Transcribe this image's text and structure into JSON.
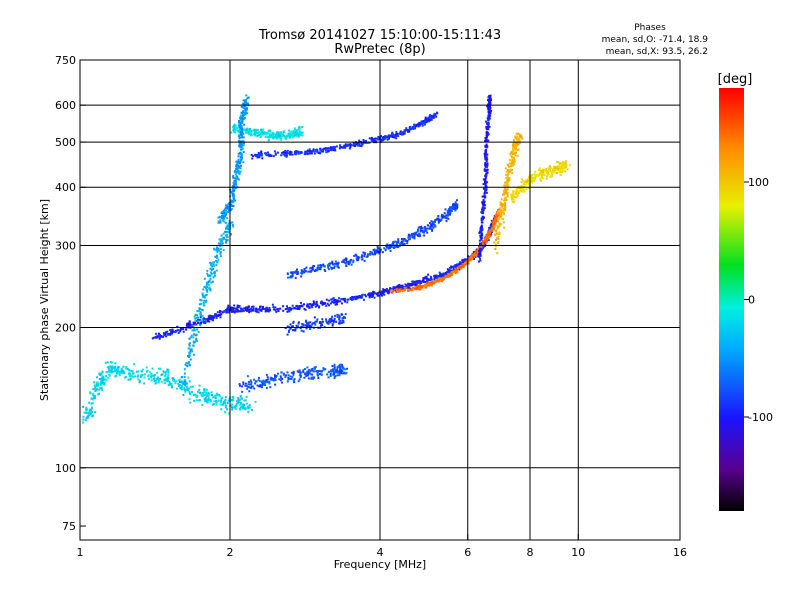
{
  "chart_data": {
    "type": "scatter",
    "title": "Tromsø 20141027 15:10:00-15:11:43",
    "subtitle": "RwPretec (8p)",
    "xlabel": "Frequency [MHz]",
    "ylabel": "Stationary phase Virtual Height [km]",
    "x_scale": "log",
    "y_scale": "log",
    "xlim": [
      1,
      16
    ],
    "ylim": [
      70,
      750
    ],
    "x_ticks": [
      1,
      2,
      4,
      6,
      8,
      10,
      16
    ],
    "x_tick_labels": [
      "1",
      "2",
      "4",
      "6",
      "8",
      "10",
      "16"
    ],
    "y_ticks": [
      75,
      100,
      200,
      300,
      400,
      500,
      600,
      750
    ],
    "y_tick_labels": [
      "75",
      "100",
      "200",
      "300",
      "400",
      "500",
      "600",
      "750"
    ],
    "grid_x": [
      2,
      4,
      6,
      8,
      10
    ],
    "grid_y": [
      100,
      200,
      300,
      400,
      500,
      600
    ],
    "grid": true,
    "colorbar": {
      "label": "[deg]",
      "range": [
        -180,
        180
      ],
      "ticks": [
        100,
        0,
        -100
      ],
      "tick_labels": [
        "100",
        "0",
        "-100"
      ],
      "colormap": "rainbow"
    },
    "phase_info": {
      "heading": "Phases",
      "line_o": "mean, sd,O: -71.4, 18.9",
      "line_x": "mean, sd,X: 93.5, 26.2"
    },
    "traces": [
      {
        "segments": [
          [
            1.02,
            128
          ],
          [
            1.08,
            150
          ],
          [
            1.15,
            165
          ],
          [
            1.25,
            160
          ],
          [
            1.45,
            158
          ],
          [
            1.6,
            150
          ],
          [
            1.8,
            142
          ],
          [
            2.0,
            138
          ],
          [
            2.2,
            138
          ]
        ],
        "phase": -20,
        "spread": 0.06
      },
      {
        "segments": [
          [
            1.4,
            190
          ],
          [
            1.6,
            200
          ],
          [
            1.8,
            210
          ],
          [
            2.0,
            220
          ],
          [
            2.2,
            220
          ],
          [
            2.6,
            220
          ],
          [
            3.0,
            225
          ],
          [
            3.5,
            232
          ],
          [
            4.0,
            238
          ],
          [
            4.4,
            245
          ],
          [
            4.8,
            252
          ],
          [
            5.3,
            260
          ],
          [
            5.7,
            272
          ],
          [
            6.1,
            285
          ],
          [
            6.4,
            300
          ],
          [
            6.6,
            320
          ],
          [
            6.8,
            345
          ]
        ],
        "phase": -95,
        "spread": 0.025
      },
      {
        "segments": [
          [
            4.2,
            240
          ],
          [
            4.8,
            245
          ],
          [
            5.3,
            255
          ],
          [
            5.8,
            270
          ],
          [
            6.2,
            290
          ],
          [
            6.5,
            310
          ],
          [
            6.7,
            330
          ],
          [
            6.9,
            360
          ]
        ],
        "phase": 140,
        "spread": 0.015
      },
      {
        "segments": [
          [
            2.6,
            260
          ],
          [
            3.0,
            270
          ],
          [
            3.5,
            280
          ],
          [
            4.0,
            295
          ],
          [
            4.5,
            310
          ],
          [
            5.0,
            330
          ],
          [
            5.4,
            350
          ],
          [
            5.7,
            370
          ]
        ],
        "phase": -80,
        "spread": 0.03
      },
      {
        "segments": [
          [
            2.2,
            470
          ],
          [
            2.6,
            475
          ],
          [
            3.0,
            480
          ],
          [
            3.5,
            495
          ],
          [
            4.0,
            510
          ],
          [
            4.4,
            525
          ],
          [
            4.8,
            550
          ],
          [
            5.2,
            580
          ]
        ],
        "phase": -90,
        "spread": 0.02
      },
      {
        "segments": [
          [
            2.0,
            540
          ],
          [
            2.2,
            530
          ],
          [
            2.4,
            520
          ],
          [
            2.6,
            520
          ],
          [
            2.8,
            530
          ]
        ],
        "phase": -15,
        "spread": 0.03
      },
      {
        "segments": [
          [
            1.9,
            340
          ],
          [
            2.0,
            370
          ],
          [
            2.05,
            420
          ],
          [
            2.1,
            480
          ],
          [
            2.1,
            560
          ],
          [
            2.15,
            620
          ]
        ],
        "phase": -50,
        "spread": 0.035
      },
      {
        "segments": [
          [
            1.6,
            150
          ],
          [
            1.7,
            200
          ],
          [
            1.8,
            250
          ],
          [
            1.9,
            300
          ],
          [
            2.0,
            340
          ]
        ],
        "phase": -40,
        "spread": 0.05
      },
      {
        "segments": [
          [
            2.1,
            150
          ],
          [
            2.4,
            155
          ],
          [
            2.8,
            160
          ],
          [
            3.2,
            162
          ],
          [
            3.4,
            164
          ]
        ],
        "phase": -75,
        "spread": 0.05
      },
      {
        "segments": [
          [
            6.3,
            280
          ],
          [
            6.4,
            350
          ],
          [
            6.5,
            420
          ],
          [
            6.5,
            500
          ],
          [
            6.6,
            580
          ],
          [
            6.6,
            630
          ]
        ],
        "phase": -100,
        "spread": 0.02
      },
      {
        "segments": [
          [
            6.8,
            300
          ],
          [
            7.0,
            360
          ],
          [
            7.2,
            420
          ],
          [
            7.4,
            480
          ],
          [
            7.6,
            520
          ]
        ],
        "phase": 110,
        "spread": 0.04
      },
      {
        "segments": [
          [
            7.3,
            380
          ],
          [
            7.8,
            410
          ],
          [
            8.4,
            430
          ],
          [
            9.0,
            440
          ],
          [
            9.4,
            450
          ]
        ],
        "phase": 90,
        "spread": 0.04
      },
      {
        "segments": [
          [
            2.6,
            200
          ],
          [
            3.0,
            205
          ],
          [
            3.4,
            212
          ]
        ],
        "phase": -85,
        "spread": 0.04
      }
    ]
  }
}
